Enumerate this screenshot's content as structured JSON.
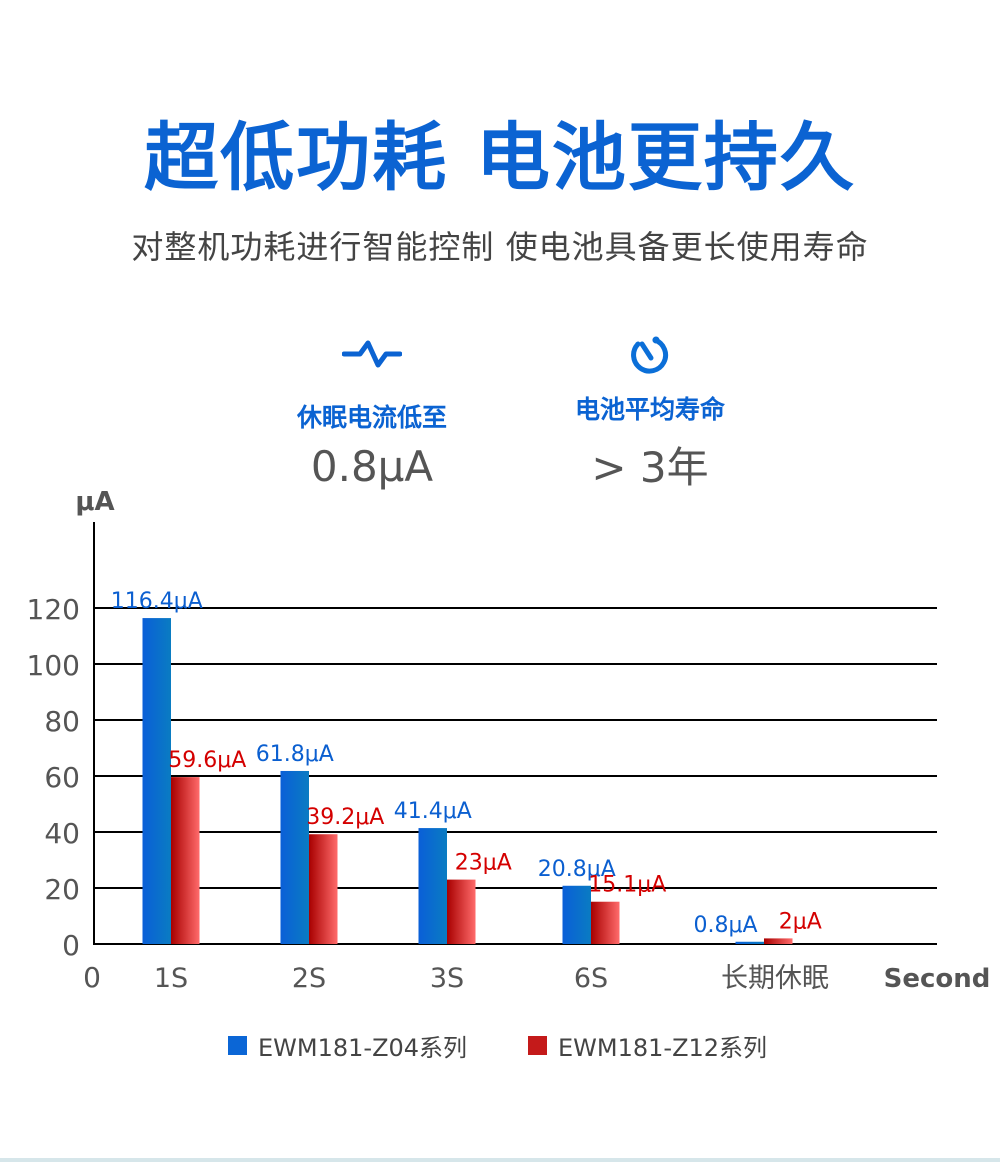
{
  "header": {
    "title": "超低功耗 电池更持久",
    "subtitle": "对整机功耗进行智能控制 使电池具备更长使用寿命"
  },
  "features": [
    {
      "icon": "pulse-wave-icon",
      "label": "休眠电流低至",
      "value": "0.8μA"
    },
    {
      "icon": "timer-icon",
      "label": "电池平均寿命",
      "value": "> 3年"
    }
  ],
  "colors": {
    "accent": "#0b63d2",
    "series1": "#0b66d6",
    "series2": "#c41a1a",
    "text": "#555555"
  },
  "chart_data": {
    "type": "bar",
    "ylabel": "μA",
    "xlabel": "Second",
    "origin_label": "0",
    "categories": [
      "1S",
      "2S",
      "3S",
      "6S",
      "长期休眠"
    ],
    "ylim": [
      0,
      120
    ],
    "yticks": [
      0,
      20,
      40,
      60,
      80,
      100,
      120
    ],
    "grid": true,
    "legend_position": "bottom",
    "series": [
      {
        "name": "EWM181-Z04系列",
        "values": [
          116.4,
          61.8,
          41.4,
          20.8,
          0.8
        ],
        "labels": [
          "116.4μA",
          "61.8μA",
          "41.4μA",
          "20.8μA",
          "0.8μA"
        ],
        "color": "#0b66d6"
      },
      {
        "name": "EWM181-Z12系列",
        "values": [
          59.6,
          39.2,
          23,
          15.1,
          2
        ],
        "labels": [
          "59.6μA",
          "39.2μA",
          "23μA",
          "15.1μA",
          "2μA"
        ],
        "color": "#c41a1a"
      }
    ]
  }
}
